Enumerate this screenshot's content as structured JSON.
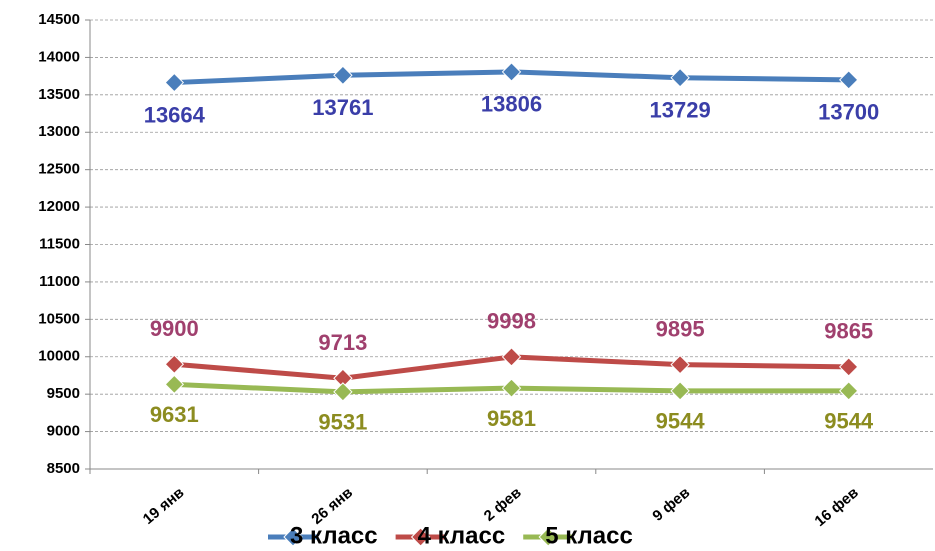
{
  "chart_data": {
    "type": "line",
    "categories": [
      "19 янв",
      "26 янв",
      "2 фев",
      "9 фев",
      "16 фев"
    ],
    "series": [
      {
        "name": "3 класс",
        "color": "#4a7ebb",
        "values": [
          13664,
          13761,
          13806,
          13729,
          13700
        ]
      },
      {
        "name": "4 класс",
        "color": "#be4b48",
        "values": [
          9900,
          9713,
          9998,
          9895,
          9865
        ]
      },
      {
        "name": "5 класс",
        "color": "#98b954",
        "values": [
          9631,
          9531,
          9581,
          9544,
          9544
        ]
      }
    ],
    "ylim": [
      8500,
      14500
    ],
    "yticks": [
      8500,
      9000,
      9500,
      10000,
      10500,
      11000,
      11500,
      12000,
      12500,
      13000,
      13500,
      14000,
      14500
    ],
    "grid": true,
    "legend": "bottom"
  }
}
